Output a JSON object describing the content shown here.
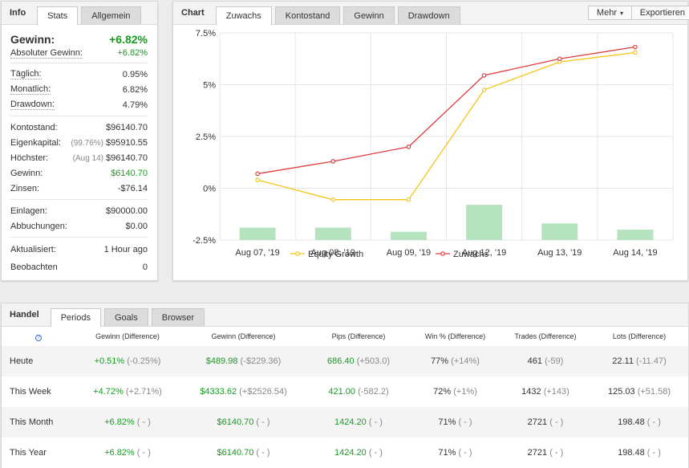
{
  "info": {
    "title": "Info",
    "tabs": [
      "Stats",
      "Allgemein"
    ],
    "gain_label": "Gewinn:",
    "gain_value": "+6.82%",
    "abs_gain_label": "Absoluter Gewinn:",
    "abs_gain_value": "+6.82%",
    "daily_label": "Täglich:",
    "daily_value": "0.95%",
    "monthly_label": "Monatlich:",
    "monthly_value": "6.82%",
    "drawdown_label": "Drawdown:",
    "drawdown_value": "4.79%",
    "balance_label": "Kontostand:",
    "balance_value": "$96140.70",
    "equity_label": "Eigenkapital:",
    "equity_pct": "(99.76%)",
    "equity_value": "$95910.55",
    "highest_label": "Höchster:",
    "highest_date": "(Aug 14)",
    "highest_value": "$96140.70",
    "profit_label": "Gewinn:",
    "profit_value": "$6140.70",
    "interest_label": "Zinsen:",
    "interest_value": "-$76.14",
    "deposits_label": "Einlagen:",
    "deposits_value": "$90000.00",
    "withdrawals_label": "Abbuchungen:",
    "withdrawals_value": "$0.00",
    "updated_label": "Aktualisiert:",
    "updated_value": "1 Hour ago",
    "watch_label": "Beobachten",
    "watch_value": "0"
  },
  "chart": {
    "title": "Chart",
    "tabs": [
      "Zuwachs",
      "Kontostand",
      "Gewinn",
      "Drawdown"
    ],
    "more_button": "Mehr",
    "export_button": "Exportieren",
    "colors": {
      "equity": "#f5c518",
      "zuwachs": "#e03c3c",
      "bar": "#b5e3bd",
      "grid": "#e6e6e6"
    }
  },
  "chart_data": {
    "type": "line",
    "categories": [
      "Aug 07, '19",
      "Aug 08, '19",
      "Aug 09, '19",
      "Aug 12, '19",
      "Aug 13, '19",
      "Aug 14, '19"
    ],
    "series": [
      {
        "name": "Equity Growth",
        "values": [
          0.4,
          -0.55,
          -0.55,
          4.75,
          6.1,
          6.55
        ]
      },
      {
        "name": "Zuwachs",
        "values": [
          0.7,
          1.3,
          2.0,
          5.45,
          6.25,
          6.82
        ]
      }
    ],
    "bars": [
      -1.9,
      -1.9,
      -2.1,
      -0.8,
      -1.7,
      -2.0
    ],
    "yticks": [
      "7.5%",
      "5%",
      "2.5%",
      "0%",
      "-2.5%"
    ],
    "ytick_values": [
      7.5,
      5,
      2.5,
      0,
      -2.5
    ],
    "ylim": [
      -2.5,
      7.5
    ],
    "legend_position": "bottom"
  },
  "handel": {
    "title": "Handel",
    "tabs": [
      "Periods",
      "Goals",
      "Browser"
    ],
    "help_glyph": "?",
    "headers": [
      "Gewinn (Difference)",
      "Gewinn (Difference)",
      "Pips (Difference)",
      "Win % (Difference)",
      "Trades (Difference)",
      "Lots (Difference)"
    ],
    "rows": [
      {
        "label": "Heute",
        "c1v": "+0.51%",
        "c1d": "(-0.25%)",
        "c2v": "$489.98",
        "c2d": "(-$229.36)",
        "c3v": "686.40",
        "c3d": "(+503.0)",
        "c4v": "77%",
        "c4d": "(+14%)",
        "c5v": "461",
        "c5d": "(-59)",
        "c6v": "22.11",
        "c6d": "(-11.47)"
      },
      {
        "label": "This Week",
        "c1v": "+4.72%",
        "c1d": "(+2.71%)",
        "c2v": "$4333.62",
        "c2d": "(+$2526.54)",
        "c3v": "421.00",
        "c3d": "(-582.2)",
        "c4v": "72%",
        "c4d": "(+1%)",
        "c5v": "1432",
        "c5d": "(+143)",
        "c6v": "125.03",
        "c6d": "(+51.58)"
      },
      {
        "label": "This Month",
        "c1v": "+6.82%",
        "c1d": "( - )",
        "c2v": "$6140.70",
        "c2d": "( - )",
        "c3v": "1424.20",
        "c3d": "( - )",
        "c4v": "71%",
        "c4d": "( - )",
        "c5v": "2721",
        "c5d": "( - )",
        "c6v": "198.48",
        "c6d": "( - )"
      },
      {
        "label": "This Year",
        "c1v": "+6.82%",
        "c1d": "( - )",
        "c2v": "$6140.70",
        "c2d": "( - )",
        "c3v": "1424.20",
        "c3d": "( - )",
        "c4v": "71%",
        "c4d": "( - )",
        "c5v": "2721",
        "c5d": "( - )",
        "c6v": "198.48",
        "c6d": "( - )"
      }
    ]
  }
}
